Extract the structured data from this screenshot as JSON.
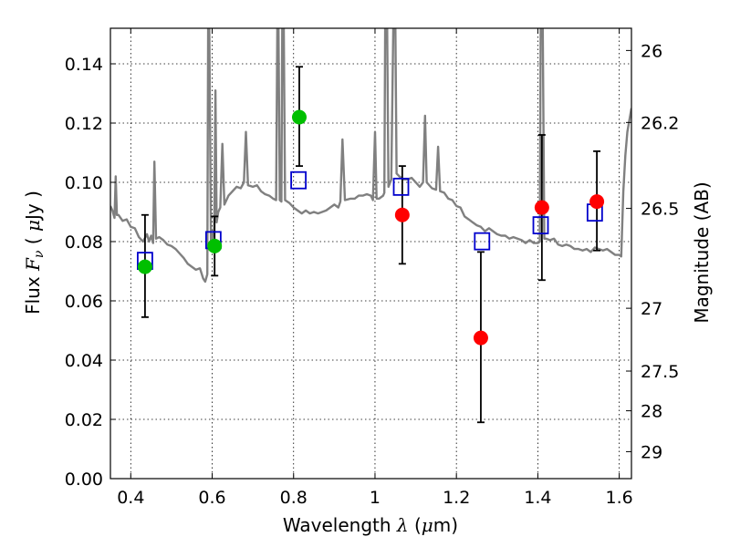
{
  "chart_data": {
    "type": "scatter",
    "xlabel": "Wavelength",
    "xlabel_symbol": "λ",
    "xlabel_unit_open": " (",
    "xlabel_unit_mu": "μ",
    "xlabel_unit_rest": "m)",
    "ylabel_left": "Flux",
    "ylabel_left_symbol": "F",
    "ylabel_left_symbol_sub": "ν",
    "ylabel_left_unit_open": "  ( ",
    "ylabel_left_unit_mu": "μ",
    "ylabel_left_unit_rest": "Jy )",
    "ylabel_right": "Magnitude (AB)",
    "xlim": [
      0.35,
      1.63
    ],
    "ylim": [
      0.0,
      0.152
    ],
    "grid": true,
    "x_ticks": [
      {
        "value": 0.4,
        "label": "0.4"
      },
      {
        "value": 0.6,
        "label": "0.6"
      },
      {
        "value": 0.8,
        "label": "0.8"
      },
      {
        "value": 1.0,
        "label": "1"
      },
      {
        "value": 1.2,
        "label": "1.2"
      },
      {
        "value": 1.4,
        "label": "1.4"
      },
      {
        "value": 1.6,
        "label": "1.6"
      }
    ],
    "y_ticks": [
      {
        "value": 0.0,
        "label": "0.00"
      },
      {
        "value": 0.02,
        "label": "0.02"
      },
      {
        "value": 0.04,
        "label": "0.04"
      },
      {
        "value": 0.06,
        "label": "0.06"
      },
      {
        "value": 0.08,
        "label": "0.08"
      },
      {
        "value": 0.1,
        "label": "0.10"
      },
      {
        "value": 0.12,
        "label": "0.12"
      },
      {
        "value": 0.14,
        "label": "0.14"
      }
    ],
    "right_ticks": [
      {
        "flux": 0.1445,
        "label": "26"
      },
      {
        "flux": 0.1202,
        "label": "26.2"
      },
      {
        "flux": 0.0912,
        "label": "26.5"
      },
      {
        "flux": 0.0575,
        "label": "27"
      },
      {
        "flux": 0.0363,
        "label": "27.5"
      },
      {
        "flux": 0.0229,
        "label": "28"
      },
      {
        "flux": 0.0091,
        "label": "29"
      }
    ],
    "observed_green": [
      {
        "x": 0.435,
        "y": 0.0715,
        "err_low": 0.0545,
        "err_high": 0.089
      },
      {
        "x": 0.606,
        "y": 0.0785,
        "err_low": 0.0685,
        "err_high": 0.0885
      },
      {
        "x": 0.814,
        "y": 0.122,
        "err_low": 0.1055,
        "err_high": 0.139
      }
    ],
    "observed_red": [
      {
        "x": 1.067,
        "y": 0.089,
        "err_low": 0.0725,
        "err_high": 0.1055
      },
      {
        "x": 1.26,
        "y": 0.0475,
        "err_low": 0.019,
        "err_high": 0.0765
      },
      {
        "x": 1.41,
        "y": 0.0915,
        "err_low": 0.067,
        "err_high": 0.116
      },
      {
        "x": 1.545,
        "y": 0.0935,
        "err_low": 0.077,
        "err_high": 0.1105
      }
    ],
    "model_photometry": [
      {
        "x": 0.435,
        "y": 0.0735
      },
      {
        "x": 0.603,
        "y": 0.0805
      },
      {
        "x": 0.812,
        "y": 0.1007
      },
      {
        "x": 1.064,
        "y": 0.0985
      },
      {
        "x": 1.263,
        "y": 0.0801
      },
      {
        "x": 1.407,
        "y": 0.0855
      },
      {
        "x": 1.54,
        "y": 0.0898
      }
    ],
    "model_spectrum": [
      [
        0.35,
        0.092
      ],
      [
        0.355,
        0.0905
      ],
      [
        0.36,
        0.088
      ],
      [
        0.363,
        0.102
      ],
      [
        0.366,
        0.089
      ],
      [
        0.37,
        0.089
      ],
      [
        0.38,
        0.087
      ],
      [
        0.39,
        0.0875
      ],
      [
        0.4,
        0.085
      ],
      [
        0.41,
        0.0845
      ],
      [
        0.42,
        0.0815
      ],
      [
        0.43,
        0.08
      ],
      [
        0.44,
        0.0825
      ],
      [
        0.445,
        0.08
      ],
      [
        0.45,
        0.082
      ],
      [
        0.455,
        0.0795
      ],
      [
        0.458,
        0.107
      ],
      [
        0.462,
        0.081
      ],
      [
        0.47,
        0.0815
      ],
      [
        0.48,
        0.0805
      ],
      [
        0.49,
        0.079
      ],
      [
        0.5,
        0.0785
      ],
      [
        0.51,
        0.0775
      ],
      [
        0.52,
        0.076
      ],
      [
        0.53,
        0.0745
      ],
      [
        0.54,
        0.0725
      ],
      [
        0.55,
        0.0715
      ],
      [
        0.56,
        0.0705
      ],
      [
        0.57,
        0.071
      ],
      [
        0.578,
        0.0675
      ],
      [
        0.583,
        0.0665
      ],
      [
        0.588,
        0.069
      ],
      [
        0.59,
        0.152
      ],
      [
        0.593,
        0.152
      ],
      [
        0.597,
        0.079
      ],
      [
        0.6,
        0.0805
      ],
      [
        0.605,
        0.0845
      ],
      [
        0.608,
        0.131
      ],
      [
        0.611,
        0.0865
      ],
      [
        0.615,
        0.09
      ],
      [
        0.62,
        0.0915
      ],
      [
        0.625,
        0.113
      ],
      [
        0.63,
        0.0925
      ],
      [
        0.64,
        0.0955
      ],
      [
        0.65,
        0.097
      ],
      [
        0.66,
        0.0985
      ],
      [
        0.67,
        0.098
      ],
      [
        0.678,
        0.1
      ],
      [
        0.683,
        0.117
      ],
      [
        0.688,
        0.099
      ],
      [
        0.7,
        0.0985
      ],
      [
        0.71,
        0.099
      ],
      [
        0.72,
        0.097
      ],
      [
        0.73,
        0.096
      ],
      [
        0.74,
        0.0955
      ],
      [
        0.75,
        0.0945
      ],
      [
        0.757,
        0.094
      ],
      [
        0.76,
        0.152
      ],
      [
        0.763,
        0.152
      ],
      [
        0.766,
        0.094
      ],
      [
        0.77,
        0.0935
      ],
      [
        0.772,
        0.152
      ],
      [
        0.776,
        0.152
      ],
      [
        0.779,
        0.094
      ],
      [
        0.79,
        0.093
      ],
      [
        0.8,
        0.0915
      ],
      [
        0.81,
        0.0905
      ],
      [
        0.82,
        0.0895
      ],
      [
        0.83,
        0.0905
      ],
      [
        0.84,
        0.0895
      ],
      [
        0.85,
        0.09
      ],
      [
        0.86,
        0.0895
      ],
      [
        0.87,
        0.09
      ],
      [
        0.88,
        0.0905
      ],
      [
        0.89,
        0.0915
      ],
      [
        0.9,
        0.0925
      ],
      [
        0.91,
        0.0915
      ],
      [
        0.915,
        0.0935
      ],
      [
        0.92,
        0.1145
      ],
      [
        0.926,
        0.094
      ],
      [
        0.94,
        0.0945
      ],
      [
        0.95,
        0.0945
      ],
      [
        0.96,
        0.0955
      ],
      [
        0.97,
        0.0955
      ],
      [
        0.98,
        0.096
      ],
      [
        0.99,
        0.0955
      ],
      [
        0.995,
        0.094
      ],
      [
        1.0,
        0.117
      ],
      [
        1.004,
        0.0945
      ],
      [
        1.01,
        0.0945
      ],
      [
        1.02,
        0.0955
      ],
      [
        1.023,
        0.0965
      ],
      [
        1.025,
        0.152
      ],
      [
        1.03,
        0.152
      ],
      [
        1.033,
        0.0985
      ],
      [
        1.04,
        0.101
      ],
      [
        1.045,
        0.152
      ],
      [
        1.05,
        0.152
      ],
      [
        1.053,
        0.103
      ],
      [
        1.06,
        0.102
      ],
      [
        1.07,
        0.101
      ],
      [
        1.08,
        0.101
      ],
      [
        1.09,
        0.1015
      ],
      [
        1.1,
        0.1
      ],
      [
        1.11,
        0.0985
      ],
      [
        1.118,
        0.1
      ],
      [
        1.123,
        0.1225
      ],
      [
        1.127,
        0.1
      ],
      [
        1.14,
        0.098
      ],
      [
        1.15,
        0.0975
      ],
      [
        1.155,
        0.112
      ],
      [
        1.16,
        0.097
      ],
      [
        1.17,
        0.0965
      ],
      [
        1.18,
        0.0945
      ],
      [
        1.19,
        0.094
      ],
      [
        1.2,
        0.092
      ],
      [
        1.21,
        0.0915
      ],
      [
        1.22,
        0.0885
      ],
      [
        1.23,
        0.0875
      ],
      [
        1.24,
        0.0865
      ],
      [
        1.25,
        0.0855
      ],
      [
        1.26,
        0.085
      ],
      [
        1.27,
        0.0835
      ],
      [
        1.28,
        0.0845
      ],
      [
        1.29,
        0.0835
      ],
      [
        1.3,
        0.0825
      ],
      [
        1.31,
        0.082
      ],
      [
        1.32,
        0.082
      ],
      [
        1.33,
        0.081
      ],
      [
        1.34,
        0.0815
      ],
      [
        1.35,
        0.081
      ],
      [
        1.36,
        0.0805
      ],
      [
        1.37,
        0.0795
      ],
      [
        1.38,
        0.0805
      ],
      [
        1.39,
        0.0795
      ],
      [
        1.4,
        0.0795
      ],
      [
        1.405,
        0.08
      ],
      [
        1.407,
        0.152
      ],
      [
        1.412,
        0.152
      ],
      [
        1.416,
        0.081
      ],
      [
        1.42,
        0.081
      ],
      [
        1.43,
        0.0805
      ],
      [
        1.44,
        0.081
      ],
      [
        1.45,
        0.079
      ],
      [
        1.46,
        0.0785
      ],
      [
        1.47,
        0.079
      ],
      [
        1.48,
        0.0785
      ],
      [
        1.49,
        0.0775
      ],
      [
        1.5,
        0.0775
      ],
      [
        1.51,
        0.077
      ],
      [
        1.52,
        0.0775
      ],
      [
        1.53,
        0.0765
      ],
      [
        1.54,
        0.078
      ],
      [
        1.55,
        0.0775
      ],
      [
        1.56,
        0.077
      ],
      [
        1.57,
        0.0775
      ],
      [
        1.58,
        0.0765
      ],
      [
        1.59,
        0.0755
      ],
      [
        1.6,
        0.0755
      ],
      [
        1.605,
        0.075
      ],
      [
        1.61,
        0.097
      ],
      [
        1.615,
        0.109
      ],
      [
        1.62,
        0.117
      ],
      [
        1.63,
        0.125
      ]
    ],
    "colors": {
      "spectrum": "#808080",
      "green_point": "#00bf00",
      "red_point": "#ff0000",
      "model_box": "#0000cc",
      "errorbar": "#000000",
      "grid": "#000000"
    }
  }
}
